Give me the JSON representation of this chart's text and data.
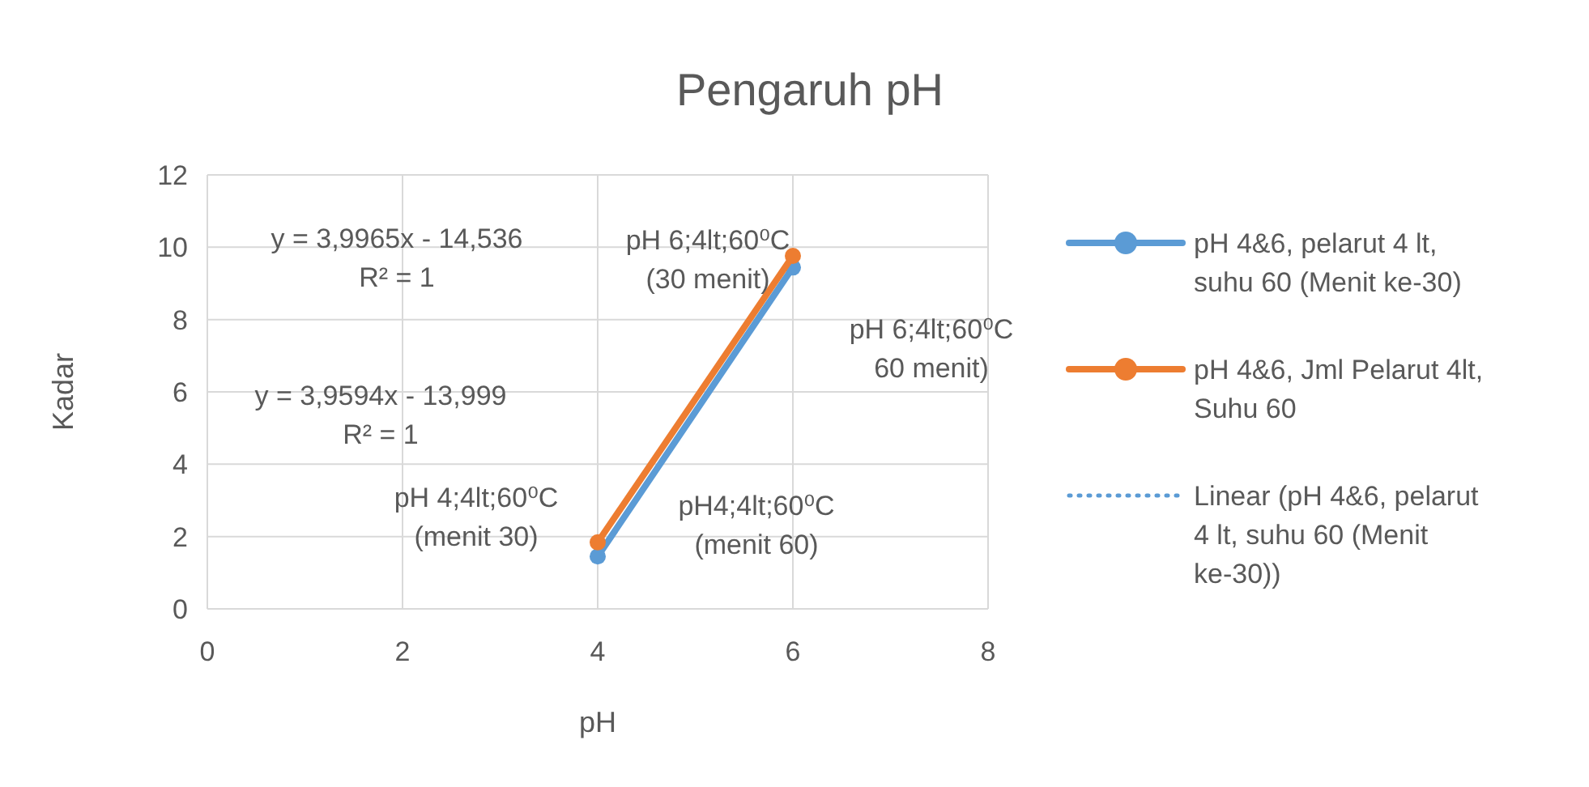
{
  "chart_data": {
    "type": "line",
    "title": "Pengaruh pH",
    "xlabel": "pH",
    "ylabel": "Kadar",
    "x": [
      4,
      6
    ],
    "xlim": [
      0,
      8
    ],
    "xticks": [
      0,
      2,
      4,
      6,
      8
    ],
    "ylim": [
      0,
      12
    ],
    "yticks": [
      0,
      2,
      4,
      6,
      8,
      10,
      12
    ],
    "grid": true,
    "legend": "right",
    "marker": "circle",
    "series": [
      {
        "name": "Linear (pH 4&6, pelarut 4 lt, suhu 60 (Menit ke-30))",
        "color": "#5b9bd5",
        "values": [
          null,
          null
        ],
        "marker": "none",
        "line_style": "dotted"
      },
      {
        "name": "pH 4&6, pelarut 4 lt, suhu 60 (Menit ke-30)",
        "color": "#5b9bd5",
        "values": [
          1.45,
          9.44
        ]
      },
      {
        "name": "pH 4&6, Jml Pelarut 4lt, Suhu 60",
        "color": "#ed7d31",
        "values": [
          1.84,
          9.76
        ]
      }
    ],
    "annotations": [
      "y = 3,9965x - 14,536",
      "R² = 1",
      "pH 6;4lt;60⁰C\n(30 menit)",
      "pH 6;4lt;60⁰C\n60 menit)",
      "pH 4;4lt;60⁰C\n(menit 30)",
      "pH4;4lt;60⁰C\n(menit 60)",
      "y = 3,9594x - 13,999",
      "R² = 1"
    ]
  }
}
